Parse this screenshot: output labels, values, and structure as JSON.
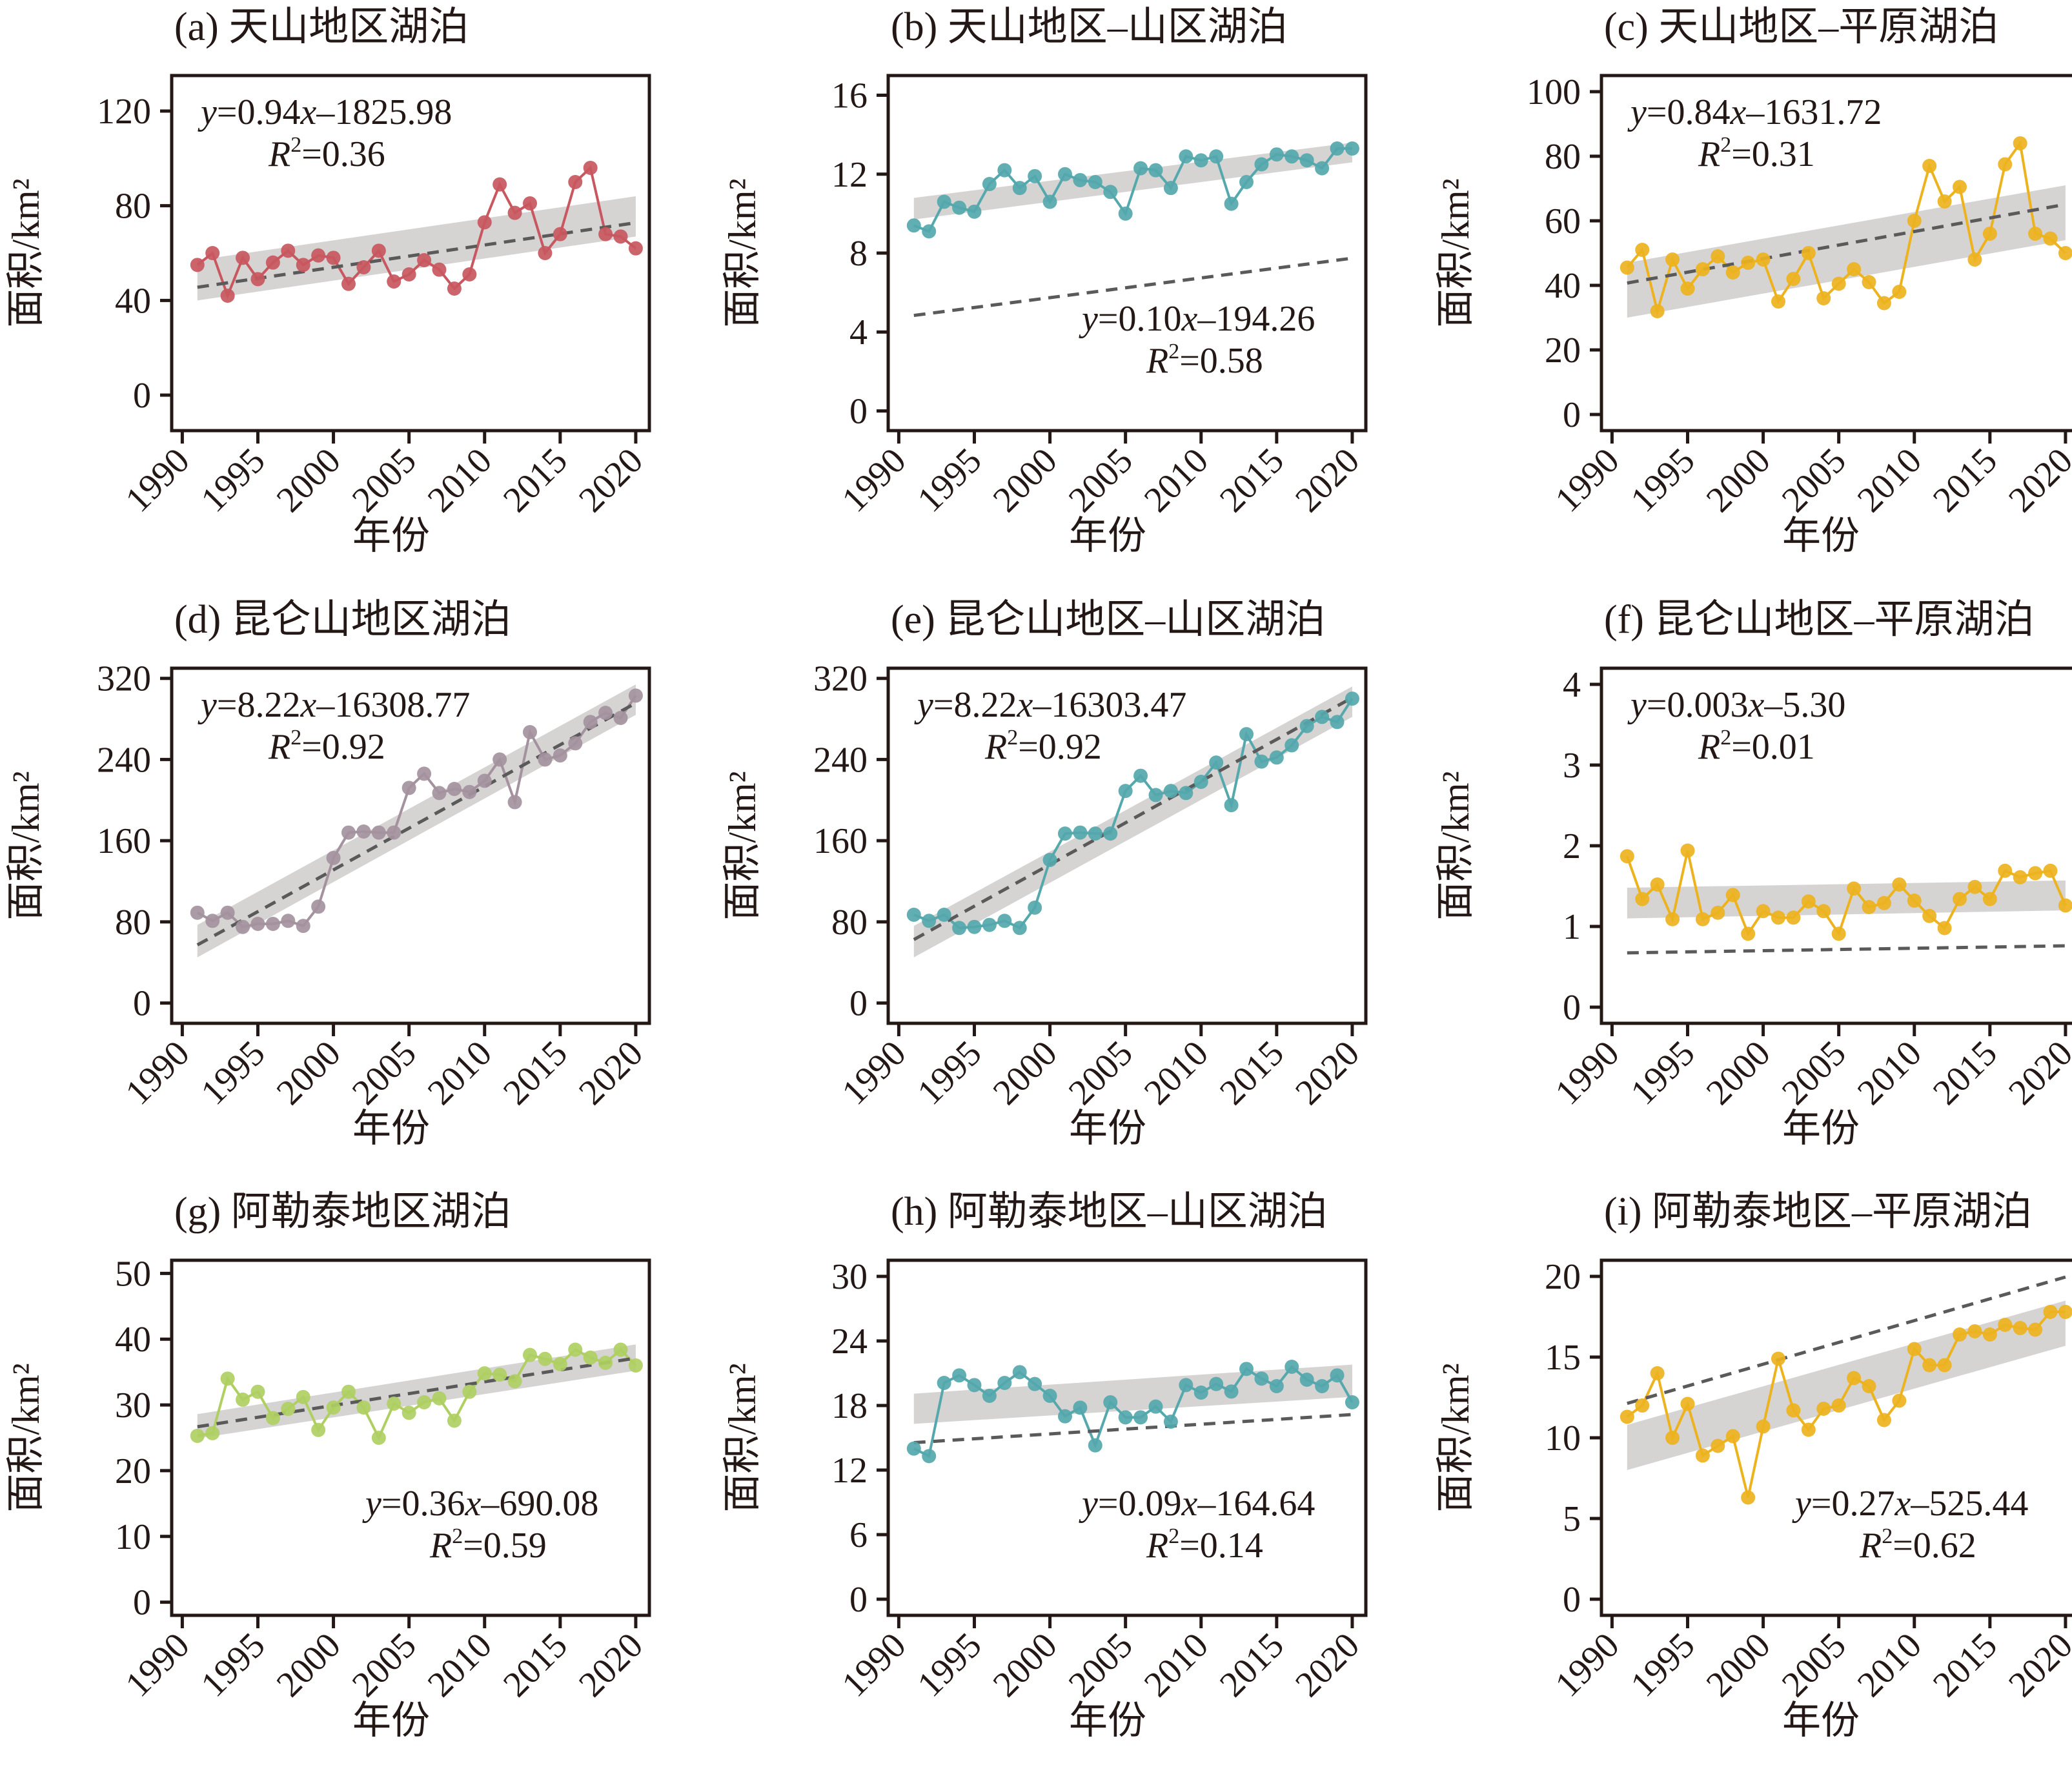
{
  "figure": {
    "x_axis_label": "年份",
    "y_axis_label": "面积/km²",
    "trend_line_color": "#5a5a5a",
    "ci_band_color": "#cfcbcb"
  },
  "chart_data": [
    {
      "id": "a",
      "type": "line",
      "title": "(a) 天山地区湖泊",
      "xlabel": "年份",
      "ylabel": "面积/km²",
      "color": "#C8575F",
      "x": [
        1991,
        1992,
        1993,
        1994,
        1995,
        1996,
        1997,
        1998,
        1999,
        2000,
        2001,
        2002,
        2003,
        2004,
        2005,
        2006,
        2007,
        2008,
        2009,
        2010,
        2011,
        2012,
        2013,
        2014,
        2015,
        2016,
        2017,
        2018,
        2019,
        2020
      ],
      "values": [
        55,
        60,
        42,
        58,
        49,
        56,
        61,
        55,
        59,
        58,
        47,
        54,
        61,
        48,
        51,
        57,
        53,
        45,
        51,
        73,
        89,
        77,
        81,
        60,
        68,
        90,
        96,
        68,
        67,
        62
      ],
      "xticks": [
        1990,
        1995,
        2000,
        2005,
        2010,
        2015,
        2020
      ],
      "yticks": [
        0,
        40,
        80,
        120
      ],
      "ylim": [
        -15,
        135
      ],
      "equation": {
        "y": "y",
        "rhs": "=0.94",
        "x": "x",
        "rest": "–1825.98",
        "r2_label": "R",
        "r2_sup": "2",
        "r2_value": "=0.36",
        "placement": "top-left"
      },
      "trend": {
        "slope": 0.94,
        "intercept": -1825.98,
        "r2": 0.36,
        "ci_start": [
          40,
          57
        ],
        "ci_end": [
          67,
          84
        ]
      }
    },
    {
      "id": "b",
      "type": "line",
      "title": "(b) 天山地区–山区湖泊",
      "xlabel": "年份",
      "ylabel": "面积/km²",
      "color": "#55A8AC",
      "x": [
        1991,
        1992,
        1993,
        1994,
        1995,
        1996,
        1997,
        1998,
        1999,
        2000,
        2001,
        2002,
        2003,
        2004,
        2005,
        2006,
        2007,
        2008,
        2009,
        2010,
        2011,
        2012,
        2013,
        2014,
        2015,
        2016,
        2017,
        2018,
        2019,
        2020
      ],
      "values": [
        9.4,
        9.1,
        10.6,
        10.3,
        10.1,
        11.5,
        12.2,
        11.3,
        11.9,
        10.6,
        12.0,
        11.7,
        11.6,
        11.1,
        10.0,
        12.3,
        12.2,
        11.3,
        12.9,
        12.7,
        12.9,
        10.5,
        11.6,
        12.5,
        13.0,
        12.9,
        12.7,
        12.3,
        13.3,
        13.3
      ],
      "xticks": [
        1990,
        1995,
        2000,
        2005,
        2010,
        2015,
        2020
      ],
      "yticks": [
        0,
        4,
        8,
        12,
        16
      ],
      "ylim": [
        -1,
        17
      ],
      "equation": {
        "y": "y",
        "rhs": "=0.10",
        "x": "x",
        "rest": "–194.26",
        "r2_label": "R",
        "r2_sup": "2",
        "r2_value": "=0.58",
        "placement": "bottom-right"
      },
      "trend": {
        "slope": 0.1,
        "intercept": -194.26,
        "r2": 0.58,
        "ci_start": [
          9.7,
          10.8
        ],
        "ci_end": [
          12.6,
          13.6
        ]
      }
    },
    {
      "id": "c",
      "type": "line",
      "title": "(c) 天山地区–平原湖泊",
      "xlabel": "年份",
      "ylabel": "面积/km²",
      "color": "#EDB31E",
      "x": [
        1991,
        1992,
        1993,
        1994,
        1995,
        1996,
        1997,
        1998,
        1999,
        2000,
        2001,
        2002,
        2003,
        2004,
        2005,
        2006,
        2007,
        2008,
        2009,
        2010,
        2011,
        2012,
        2013,
        2014,
        2015,
        2016,
        2017,
        2018,
        2019,
        2020
      ],
      "values": [
        45.5,
        51,
        32,
        48,
        39,
        45,
        49,
        44,
        47,
        48,
        35,
        42,
        50,
        36,
        40.5,
        45,
        41,
        34.5,
        38,
        60,
        77,
        66,
        70.5,
        48,
        56,
        77.5,
        84,
        56,
        54.5,
        50
      ],
      "xticks": [
        1990,
        1995,
        2000,
        2005,
        2010,
        2015,
        2020
      ],
      "yticks": [
        0,
        20,
        40,
        60,
        80,
        100
      ],
      "ylim": [
        -5,
        105
      ],
      "equation": {
        "y": "y",
        "rhs": "=0.84",
        "x": "x",
        "rest": "–1631.72",
        "r2_label": "R",
        "r2_sup": "2",
        "r2_value": "=0.31",
        "placement": "top-left"
      },
      "trend": {
        "slope": 0.84,
        "intercept": -1631.72,
        "r2": 0.31,
        "ci_start": [
          30,
          47
        ],
        "ci_end": [
          54,
          71
        ]
      }
    },
    {
      "id": "d",
      "type": "line",
      "title": "(d) 昆仑山地区湖泊",
      "xlabel": "年份",
      "ylabel": "面积/km²",
      "color": "#A4929E",
      "x": [
        1991,
        1992,
        1993,
        1994,
        1995,
        1996,
        1997,
        1998,
        1999,
        2000,
        2001,
        2002,
        2003,
        2004,
        2005,
        2006,
        2007,
        2008,
        2009,
        2010,
        2011,
        2012,
        2013,
        2014,
        2015,
        2016,
        2017,
        2018,
        2019,
        2020
      ],
      "values": [
        89,
        81,
        89,
        75,
        78,
        78,
        81,
        76,
        95,
        143,
        168,
        169,
        168,
        168,
        212,
        226,
        207,
        211,
        208,
        219,
        240,
        198,
        267,
        240,
        244,
        256,
        277,
        286,
        281,
        303
      ],
      "xticks": [
        1990,
        1995,
        2000,
        2005,
        2010,
        2015,
        2020
      ],
      "yticks": [
        0,
        80,
        160,
        240,
        320
      ],
      "ylim": [
        -20,
        330
      ],
      "equation": {
        "y": "y",
        "rhs": "=8.22",
        "x": "x",
        "rest": "–16308.77",
        "r2_label": "R",
        "r2_sup": "2",
        "r2_value": "=0.92",
        "placement": "top-left"
      },
      "trend": {
        "slope": 8.22,
        "intercept": -16308.77,
        "r2": 0.92,
        "ci_start": [
          45,
          77
        ],
        "ci_end": [
          284,
          314
        ]
      }
    },
    {
      "id": "e",
      "type": "line",
      "title": "(e) 昆仑山地区–山区湖泊",
      "xlabel": "年份",
      "ylabel": "面积/km²",
      "color": "#55A8AC",
      "x": [
        1991,
        1992,
        1993,
        1994,
        1995,
        1996,
        1997,
        1998,
        1999,
        2000,
        2001,
        2002,
        2003,
        2004,
        2005,
        2006,
        2007,
        2008,
        2009,
        2010,
        2011,
        2012,
        2013,
        2014,
        2015,
        2016,
        2017,
        2018,
        2019,
        2020
      ],
      "values": [
        87,
        81,
        87,
        74,
        75,
        77,
        81,
        74,
        94,
        141,
        167,
        168,
        167,
        167,
        209,
        224,
        205,
        209,
        207,
        218,
        237,
        195,
        265,
        238,
        242,
        254,
        273,
        282,
        277,
        300
      ],
      "xticks": [
        1990,
        1995,
        2000,
        2005,
        2010,
        2015,
        2020
      ],
      "yticks": [
        0,
        80,
        160,
        240,
        320
      ],
      "ylim": [
        -20,
        330
      ],
      "equation": {
        "y": "y",
        "rhs": "=8.22",
        "x": "x",
        "rest": "–16303.47",
        "r2_label": "R",
        "r2_sup": "2",
        "r2_value": "=0.92",
        "placement": "top-left"
      },
      "trend": {
        "slope": 8.22,
        "intercept": -16303.47,
        "r2": 0.92,
        "ci_start": [
          45,
          76
        ],
        "ci_end": [
          282,
          312
        ]
      }
    },
    {
      "id": "f",
      "type": "line",
      "title": "(f) 昆仑山地区–平原湖泊",
      "xlabel": "年份",
      "ylabel": "面积/km²",
      "color": "#EDB31E",
      "x": [
        1991,
        1992,
        1993,
        1994,
        1995,
        1996,
        1997,
        1998,
        1999,
        2000,
        2001,
        2002,
        2003,
        2004,
        2005,
        2006,
        2007,
        2008,
        2009,
        2010,
        2011,
        2012,
        2013,
        2014,
        2015,
        2016,
        2017,
        2018,
        2019,
        2020
      ],
      "values": [
        1.87,
        1.34,
        1.52,
        1.09,
        1.94,
        1.09,
        1.17,
        1.39,
        0.91,
        1.19,
        1.11,
        1.11,
        1.31,
        1.19,
        0.91,
        1.47,
        1.24,
        1.29,
        1.52,
        1.32,
        1.13,
        0.98,
        1.34,
        1.49,
        1.34,
        1.69,
        1.61,
        1.66,
        1.69,
        1.26
      ],
      "xticks": [
        1990,
        1995,
        2000,
        2005,
        2010,
        2015,
        2020
      ],
      "yticks": [
        0,
        1,
        2,
        3,
        4
      ],
      "ylim": [
        -0.2,
        4.2
      ],
      "equation": {
        "y": "y",
        "rhs": "=0.003",
        "x": "x",
        "rest": "–5.30",
        "r2_label": "R",
        "r2_sup": "2",
        "r2_value": "=0.01",
        "placement": "top-left"
      },
      "trend": {
        "slope": 0.003,
        "intercept": -5.3,
        "r2": 0.01,
        "ci_start": [
          1.1,
          1.48
        ],
        "ci_end": [
          1.2,
          1.57
        ]
      }
    },
    {
      "id": "g",
      "type": "line",
      "title": "(g) 阿勒泰地区湖泊",
      "xlabel": "年份",
      "ylabel": "面积/km²",
      "color": "#AFCF62",
      "x": [
        1991,
        1992,
        1993,
        1994,
        1995,
        1996,
        1997,
        1998,
        1999,
        2000,
        2001,
        2002,
        2003,
        2004,
        2005,
        2006,
        2007,
        2008,
        2009,
        2010,
        2011,
        2012,
        2013,
        2014,
        2015,
        2016,
        2017,
        2018,
        2019,
        2020
      ],
      "values": [
        25.3,
        25.7,
        34,
        30.8,
        32,
        28,
        29.4,
        31.2,
        26.2,
        29.6,
        32,
        29.6,
        25,
        30.2,
        28.8,
        30.4,
        31,
        27.6,
        32,
        34.8,
        34.6,
        33.6,
        37.6,
        37,
        36.2,
        38.4,
        37.2,
        36.4,
        38.4,
        36
      ],
      "xticks": [
        1990,
        1995,
        2000,
        2005,
        2010,
        2015,
        2020
      ],
      "yticks": [
        0,
        10,
        20,
        30,
        40,
        50
      ],
      "ylim": [
        -2,
        52
      ],
      "equation": {
        "y": "y",
        "rhs": "=0.36",
        "x": "x",
        "rest": "–690.08",
        "r2_label": "R",
        "r2_sup": "2",
        "r2_value": "=0.59",
        "placement": "bottom-right"
      },
      "trend": {
        "slope": 0.36,
        "intercept": -690.08,
        "r2": 0.59,
        "ci_start": [
          24.9,
          28.6
        ],
        "ci_end": [
          35.2,
          39.2
        ]
      }
    },
    {
      "id": "h",
      "type": "line",
      "title": "(h) 阿勒泰地区–山区湖泊",
      "xlabel": "年份",
      "ylabel": "面积/km²",
      "color": "#55A8AC",
      "x": [
        1991,
        1992,
        1993,
        1994,
        1995,
        1996,
        1997,
        1998,
        1999,
        2000,
        2001,
        2002,
        2003,
        2004,
        2005,
        2006,
        2007,
        2008,
        2009,
        2010,
        2011,
        2012,
        2013,
        2014,
        2015,
        2016,
        2017,
        2018,
        2019,
        2020
      ],
      "values": [
        14.0,
        13.3,
        20.1,
        20.8,
        19.9,
        18.9,
        20.1,
        21.1,
        20.0,
        18.9,
        17.0,
        17.8,
        14.3,
        18.3,
        16.9,
        16.9,
        17.9,
        16.5,
        19.9,
        19.2,
        20.0,
        19.3,
        21.4,
        20.5,
        19.8,
        21.6,
        20.4,
        19.8,
        20.8,
        18.3
      ],
      "xticks": [
        1990,
        1995,
        2000,
        2005,
        2010,
        2015,
        2020
      ],
      "yticks": [
        0,
        6,
        12,
        18,
        24,
        30
      ],
      "ylim": [
        -1.5,
        31.5
      ],
      "equation": {
        "y": "y",
        "rhs": "=0.09",
        "x": "x",
        "rest": "–164.64",
        "r2_label": "R",
        "r2_sup": "2",
        "r2_value": "=0.14",
        "placement": "bottom-right"
      },
      "trend": {
        "slope": 0.09,
        "intercept": -164.64,
        "r2": 0.14,
        "ci_start": [
          16.3,
          19.1
        ],
        "ci_end": [
          18.8,
          21.8
        ]
      }
    },
    {
      "id": "i",
      "type": "line",
      "title": "(i) 阿勒泰地区–平原湖泊",
      "xlabel": "年份",
      "ylabel": "面积/km²",
      "color": "#EDB31E",
      "x": [
        1991,
        1992,
        1993,
        1994,
        1995,
        1996,
        1997,
        1998,
        1999,
        2000,
        2001,
        2002,
        2003,
        2004,
        2005,
        2006,
        2007,
        2008,
        2009,
        2010,
        2011,
        2012,
        2013,
        2014,
        2015,
        2016,
        2017,
        2018,
        2019,
        2020
      ],
      "values": [
        11.3,
        12.0,
        14.0,
        10.0,
        12.1,
        8.9,
        9.5,
        10.1,
        6.3,
        10.7,
        14.9,
        11.7,
        10.5,
        11.8,
        12.0,
        13.7,
        13.2,
        11.1,
        12.3,
        15.5,
        14.5,
        14.5,
        16.4,
        16.6,
        16.4,
        17.0,
        16.8,
        16.7,
        17.8,
        17.8
      ],
      "xticks": [
        1990,
        1995,
        2000,
        2005,
        2010,
        2015,
        2020
      ],
      "yticks": [
        0,
        5,
        10,
        15,
        20
      ],
      "ylim": [
        -1,
        21
      ],
      "equation": {
        "y": "y",
        "rhs": "=0.27",
        "x": "x",
        "rest": "–525.44",
        "r2_label": "R",
        "r2_sup": "2",
        "r2_value": "=0.62",
        "placement": "bottom-right"
      },
      "trend": {
        "slope": 0.27,
        "intercept": -525.44,
        "r2": 0.62,
        "ci_start": [
          8.0,
          10.8
        ],
        "ci_end": [
          15.7,
          18.5
        ]
      }
    }
  ]
}
